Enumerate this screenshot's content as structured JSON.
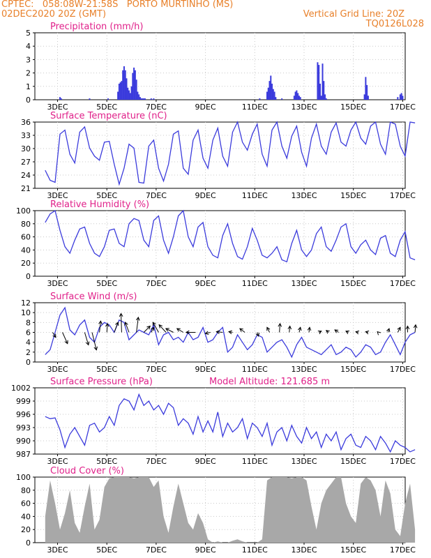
{
  "header": {
    "line1": "CPTEC:   058:08W-21:58S   PORTO MURTINHO (MS)",
    "line2": "02DEC2020 20Z (GMT)",
    "grid_note": "Vertical Grid Line: 20Z",
    "code": "TQ0126L028",
    "color": "#e8802a"
  },
  "x_axis": {
    "ticks": [
      "3DEC",
      "5DEC",
      "7DEC",
      "9DEC",
      "11DEC",
      "13DEC",
      "15DEC",
      "17DEC"
    ],
    "start_label": "02DEC2020 20Z",
    "range_days": [
      0,
      15
    ]
  },
  "colors": {
    "line": "#3b3bdc",
    "title": "#e0218a",
    "cloud": "#a8a8a8",
    "grid": "#c8c8c8"
  },
  "chart_data": [
    {
      "id": "precip",
      "type": "bar",
      "title": "Precipitation (mm/h)",
      "ylim": [
        0,
        5
      ],
      "yticks": [
        "0",
        "1",
        "2",
        "3",
        "4",
        "5"
      ],
      "x": [
        0.6,
        0.65,
        1.8,
        2.55,
        2.95,
        3.0,
        3.05,
        3.1,
        3.15,
        3.2,
        3.25,
        3.3,
        3.35,
        3.4,
        3.45,
        3.5,
        3.55,
        3.6,
        3.65,
        3.7,
        3.75,
        3.8,
        3.85,
        3.9,
        3.95,
        4.0,
        4.05,
        4.3,
        4.4,
        8.7,
        9.0,
        9.05,
        9.1,
        9.15,
        9.2,
        9.25,
        9.3,
        9.35,
        9.6,
        10.1,
        10.15,
        10.2,
        10.25,
        10.3,
        10.35,
        11.05,
        11.1,
        11.15,
        11.2,
        11.25,
        11.3,
        11.35,
        11.4,
        12.95,
        13.0,
        13.05,
        13.1,
        14.3,
        14.4,
        14.45,
        14.5
      ],
      "values": [
        0.2,
        0.1,
        0.1,
        0.1,
        0.6,
        1.2,
        1.3,
        1.4,
        2.2,
        2.5,
        2.2,
        1.6,
        0.9,
        0.7,
        0.5,
        1.0,
        2.0,
        2.4,
        2.2,
        1.5,
        0.6,
        0.4,
        0.2,
        0.1,
        0.1,
        0.1,
        0.1,
        0.1,
        0.1,
        0.1,
        0.6,
        0.9,
        1.4,
        1.8,
        1.2,
        0.8,
        0.6,
        0.2,
        0.1,
        0.3,
        0.6,
        0.7,
        0.5,
        0.3,
        0.2,
        2.8,
        2.6,
        1.2,
        0.3,
        2.7,
        1.4,
        0.4,
        0.1,
        0.4,
        1.7,
        1.1,
        0.3,
        0.2,
        0.4,
        0.5,
        0.3
      ]
    },
    {
      "id": "temp",
      "type": "line",
      "title": "Surface Temperature (nC)",
      "ylim": [
        19.5,
        36
      ],
      "yticks": [
        "21",
        "24",
        "27",
        "30",
        "33",
        "36"
      ],
      "x": [
        0,
        0.2,
        0.4,
        0.6,
        0.8,
        1.0,
        1.2,
        1.4,
        1.6,
        1.8,
        2.0,
        2.2,
        2.4,
        2.6,
        2.8,
        3.0,
        3.2,
        3.4,
        3.6,
        3.8,
        4.0,
        4.2,
        4.4,
        4.6,
        4.8,
        5.0,
        5.2,
        5.4,
        5.6,
        5.8,
        6.0,
        6.2,
        6.4,
        6.6,
        6.8,
        7.0,
        7.2,
        7.4,
        7.6,
        7.8,
        8.0,
        8.2,
        8.4,
        8.6,
        8.8,
        9.0,
        9.2,
        9.4,
        9.6,
        9.8,
        10.0,
        10.2,
        10.4,
        10.6,
        10.8,
        11.0,
        11.2,
        11.4,
        11.6,
        11.8,
        12.0,
        12.2,
        12.4,
        12.6,
        12.8,
        13.0,
        13.2,
        13.4,
        13.6,
        13.8,
        14.0,
        14.2,
        14.4,
        14.6,
        14.8,
        15.0
      ],
      "values": [
        24.0,
        21.5,
        21.0,
        33.0,
        34.0,
        28.0,
        25.8,
        33.5,
        34.8,
        29.5,
        27.5,
        26.5,
        31.0,
        31.2,
        25.5,
        20.5,
        24.5,
        30.5,
        29.5,
        21.0,
        20.8,
        30.0,
        31.5,
        24.5,
        21.3,
        25.5,
        33.0,
        33.8,
        24.5,
        23.0,
        31.5,
        34.0,
        27.0,
        24.5,
        31.5,
        34.5,
        27.5,
        25.0,
        33.5,
        36.0,
        31.0,
        29.0,
        33.0,
        35.5,
        28.0,
        25.0,
        34.0,
        36.0,
        30.0,
        27.0,
        32.5,
        35.0,
        28.5,
        25.0,
        32.0,
        35.5,
        30.0,
        28.0,
        33.5,
        35.8,
        31.0,
        30.0,
        34.0,
        36.0,
        32.0,
        30.5,
        35.0,
        36.0,
        30.5,
        28.0,
        36.0,
        35.5,
        30.0,
        27.5,
        36.0,
        35.8
      ]
    },
    {
      "id": "rh",
      "type": "line",
      "title": "Relative Humidity (%)",
      "ylim": [
        0,
        100
      ],
      "yticks": [
        "0",
        "20",
        "40",
        "60",
        "80",
        "100"
      ],
      "x": [
        0,
        0.2,
        0.4,
        0.6,
        0.8,
        1.0,
        1.2,
        1.4,
        1.6,
        1.8,
        2.0,
        2.2,
        2.4,
        2.6,
        2.8,
        3.0,
        3.2,
        3.4,
        3.6,
        3.8,
        4.0,
        4.2,
        4.4,
        4.6,
        4.8,
        5.0,
        5.2,
        5.4,
        5.6,
        5.8,
        6.0,
        6.2,
        6.4,
        6.6,
        6.8,
        7.0,
        7.2,
        7.4,
        7.6,
        7.8,
        8.0,
        8.2,
        8.4,
        8.6,
        8.8,
        9.0,
        9.2,
        9.4,
        9.6,
        9.8,
        10.0,
        10.2,
        10.4,
        10.6,
        10.8,
        11.0,
        11.2,
        11.4,
        11.6,
        11.8,
        12.0,
        12.2,
        12.4,
        12.6,
        12.8,
        13.0,
        13.2,
        13.4,
        13.6,
        13.8,
        14.0,
        14.2,
        14.4,
        14.6,
        14.8,
        15.0
      ],
      "values": [
        82,
        95,
        100,
        70,
        45,
        35,
        55,
        72,
        75,
        50,
        35,
        30,
        45,
        70,
        72,
        50,
        45,
        80,
        88,
        85,
        55,
        45,
        85,
        92,
        55,
        35,
        60,
        92,
        100,
        60,
        45,
        75,
        82,
        45,
        32,
        28,
        62,
        80,
        50,
        30,
        26,
        45,
        73,
        55,
        32,
        28,
        35,
        45,
        25,
        22,
        50,
        70,
        40,
        30,
        40,
        65,
        75,
        45,
        38,
        55,
        75,
        80,
        45,
        35,
        48,
        55,
        40,
        33,
        58,
        62,
        35,
        30,
        55,
        68,
        28,
        25
      ]
    },
    {
      "id": "wind",
      "type": "line",
      "title": "Surface Wind (m/s)",
      "ylim": [
        0,
        12
      ],
      "yticks": [
        "0",
        "2",
        "4",
        "6",
        "8",
        "10",
        "12"
      ],
      "x": [
        0,
        0.2,
        0.4,
        0.6,
        0.8,
        1.0,
        1.2,
        1.4,
        1.6,
        1.8,
        2.0,
        2.2,
        2.4,
        2.6,
        2.8,
        3.0,
        3.2,
        3.4,
        3.6,
        3.8,
        4.0,
        4.2,
        4.4,
        4.6,
        4.8,
        5.0,
        5.2,
        5.4,
        5.6,
        5.8,
        6.0,
        6.2,
        6.4,
        6.6,
        6.8,
        7.0,
        7.2,
        7.4,
        7.6,
        7.8,
        8.0,
        8.2,
        8.4,
        8.6,
        8.8,
        9.0,
        9.2,
        9.4,
        9.6,
        9.8,
        10.0,
        10.2,
        10.4,
        10.6,
        10.8,
        11.0,
        11.2,
        11.4,
        11.6,
        11.8,
        12.0,
        12.2,
        12.4,
        12.6,
        12.8,
        13.0,
        13.2,
        13.4,
        13.6,
        13.8,
        14.0,
        14.2,
        14.4,
        14.6,
        14.8,
        15.0
      ],
      "values": [
        1.5,
        2.5,
        6.0,
        9.5,
        11.0,
        6.5,
        5.5,
        7.5,
        8.5,
        5.0,
        4.0,
        7.0,
        8.0,
        7.5,
        6.0,
        8.5,
        8.0,
        4.5,
        5.5,
        6.5,
        6.0,
        5.5,
        7.5,
        3.5,
        5.5,
        6.0,
        4.5,
        5.0,
        4.0,
        6.0,
        4.5,
        5.0,
        7.0,
        4.0,
        4.5,
        6.0,
        7.0,
        2.0,
        3.0,
        5.5,
        4.0,
        2.5,
        3.5,
        5.5,
        5.0,
        2.0,
        3.0,
        4.0,
        4.5,
        3.0,
        1.0,
        3.5,
        5.0,
        3.0,
        2.5,
        2.0,
        1.5,
        2.5,
        3.5,
        1.5,
        2.0,
        3.0,
        2.5,
        1.0,
        2.0,
        3.5,
        3.0,
        1.5,
        2.0,
        4.0,
        5.5,
        3.5,
        1.5,
        4.0,
        5.5,
        6.0
      ],
      "arrows": {
        "x": [
          0.3,
          0.7,
          1.6,
          1.9,
          2.2,
          2.5,
          2.8,
          3.1,
          3.4,
          3.7,
          4.0,
          4.3,
          4.6,
          4.9,
          5.2,
          5.6,
          6.1,
          6.7,
          7.2,
          7.6,
          8.1,
          8.6,
          9.1,
          9.5,
          9.9,
          10.3,
          10.7,
          11.1,
          11.5,
          11.9,
          12.3,
          12.7,
          13.1,
          13.5,
          13.9,
          14.3,
          14.7,
          15.0
        ],
        "dx": [
          0.25,
          0.4,
          0.3,
          0.35,
          0.1,
          0.05,
          0.3,
          -0.05,
          -0.3,
          0.15,
          0.5,
          0.2,
          -0.45,
          -0.55,
          -0.6,
          -0.5,
          -0.75,
          -0.4,
          -0.5,
          -0.3,
          -0.4,
          0.1,
          -0.2,
          0.05,
          0.05,
          0.1,
          0.05,
          0.2,
          -0.2,
          -0.3,
          -0.2,
          -0.2,
          -0.2,
          -0.05,
          0.1,
          0.2,
          0.0,
          0.05
        ],
        "dy": [
          -0.4,
          -0.9,
          -1.0,
          -1.4,
          0.9,
          0.7,
          0.8,
          1.5,
          0.8,
          1.2,
          0.5,
          0.4,
          0.8,
          0.6,
          0.3,
          0.3,
          0.0,
          -0.1,
          0.05,
          0.05,
          0.3,
          -0.3,
          0.4,
          0.7,
          0.5,
          0.4,
          0.4,
          0.1,
          0.15,
          0.2,
          0.1,
          0.05,
          0.05,
          0.05,
          0.3,
          0.4,
          0.5,
          0.6
        ]
      }
    },
    {
      "id": "pres",
      "type": "line",
      "title": "Surface Pressure (hPa)",
      "subtitle": "Model Altitude: 121.685  m",
      "ylim": [
        987,
        1002
      ],
      "yticks": [
        "987",
        "990",
        "993",
        "996",
        "999",
        "1002"
      ],
      "x": [
        0,
        0.2,
        0.4,
        0.6,
        0.8,
        1.0,
        1.2,
        1.4,
        1.6,
        1.8,
        2.0,
        2.2,
        2.4,
        2.6,
        2.8,
        3.0,
        3.2,
        3.4,
        3.6,
        3.8,
        4.0,
        4.2,
        4.4,
        4.6,
        4.8,
        5.0,
        5.2,
        5.4,
        5.6,
        5.8,
        6.0,
        6.2,
        6.4,
        6.6,
        6.8,
        7.0,
        7.2,
        7.4,
        7.6,
        7.8,
        8.0,
        8.2,
        8.4,
        8.6,
        8.8,
        9.0,
        9.2,
        9.4,
        9.6,
        9.8,
        10.0,
        10.2,
        10.4,
        10.6,
        10.8,
        11.0,
        11.2,
        11.4,
        11.6,
        11.8,
        12.0,
        12.2,
        12.4,
        12.6,
        12.8,
        13.0,
        13.2,
        13.4,
        13.6,
        13.8,
        14.0,
        14.2,
        14.4,
        14.6,
        14.8,
        15.0
      ],
      "values": [
        995.5,
        995.0,
        995.2,
        992.5,
        988.5,
        991.5,
        993.0,
        991.0,
        989.0,
        993.5,
        994.0,
        992.0,
        993.0,
        995.5,
        993.5,
        998.0,
        999.5,
        999.0,
        997.0,
        1000.5,
        998.0,
        999.0,
        997.0,
        998.0,
        996.0,
        998.5,
        997.5,
        993.5,
        995.0,
        994.0,
        991.5,
        995.5,
        992.0,
        994.5,
        992.0,
        996.5,
        991.0,
        994.0,
        992.0,
        993.0,
        995.0,
        990.5,
        994.0,
        993.0,
        991.0,
        994.0,
        989.0,
        992.0,
        993.0,
        990.0,
        993.5,
        991.0,
        989.5,
        993.0,
        990.5,
        992.0,
        988.5,
        991.5,
        990.0,
        992.0,
        988.0,
        990.5,
        991.5,
        989.0,
        988.5,
        991.0,
        990.0,
        988.0,
        991.0,
        989.5,
        987.5,
        990.0,
        989.0,
        988.5,
        987.5,
        988.0
      ]
    },
    {
      "id": "cloud",
      "type": "area",
      "title": "Cloud Cover (%)",
      "ylim": [
        0,
        100
      ],
      "yticks": [
        "0",
        "20",
        "40",
        "60",
        "80",
        "100"
      ],
      "x": [
        0,
        0.2,
        0.4,
        0.6,
        0.8,
        1.0,
        1.2,
        1.4,
        1.6,
        1.8,
        2.0,
        2.2,
        2.4,
        2.6,
        2.8,
        3.0,
        3.2,
        3.4,
        3.6,
        3.8,
        4.0,
        4.2,
        4.4,
        4.6,
        4.8,
        5.0,
        5.2,
        5.4,
        5.6,
        5.8,
        6.0,
        6.2,
        6.4,
        6.6,
        6.8,
        7.0,
        7.2,
        7.4,
        7.6,
        7.8,
        8.0,
        8.2,
        8.4,
        8.6,
        8.8,
        9.0,
        9.2,
        9.4,
        9.6,
        9.8,
        10.0,
        10.2,
        10.4,
        10.6,
        10.8,
        11.0,
        11.2,
        11.4,
        11.6,
        11.8,
        12.0,
        12.2,
        12.4,
        12.6,
        12.8,
        13.0,
        13.2,
        13.4,
        13.6,
        13.8,
        14.0,
        14.2,
        14.4,
        14.6,
        14.8,
        15.0
      ],
      "values": [
        40,
        95,
        60,
        20,
        45,
        80,
        30,
        15,
        55,
        90,
        20,
        35,
        85,
        98,
        100,
        100,
        100,
        100,
        98,
        100,
        100,
        100,
        85,
        95,
        40,
        15,
        55,
        90,
        60,
        30,
        20,
        45,
        30,
        5,
        0,
        2,
        0,
        0,
        3,
        5,
        2,
        0,
        0,
        0,
        5,
        95,
        100,
        100,
        100,
        100,
        98,
        100,
        100,
        95,
        55,
        20,
        60,
        80,
        90,
        100,
        100,
        60,
        40,
        30,
        90,
        100,
        95,
        80,
        40,
        95,
        75,
        20,
        10,
        60,
        90,
        20
      ]
    }
  ]
}
